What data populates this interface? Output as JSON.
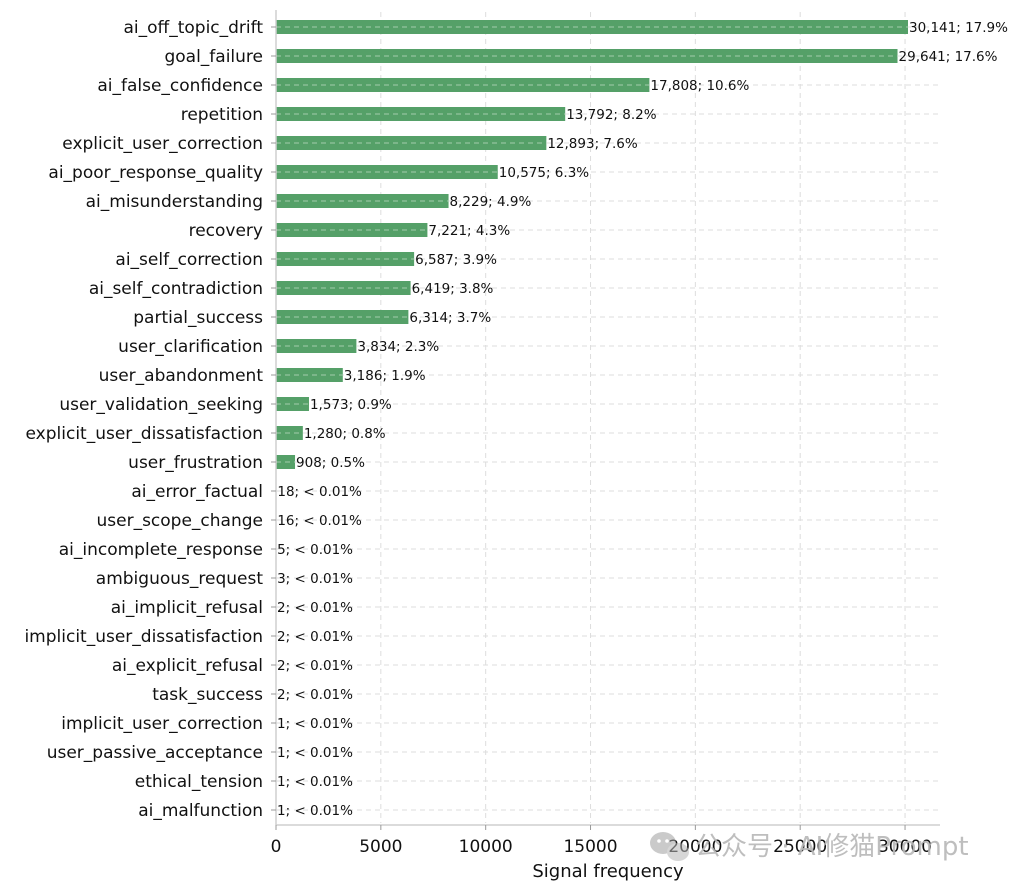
{
  "chart_data": {
    "type": "bar",
    "orientation": "horizontal",
    "title": "",
    "xlabel": "Signal frequency",
    "ylabel": "",
    "xlim": [
      0,
      32000
    ],
    "xticks": [
      0,
      5000,
      10000,
      15000,
      20000,
      25000,
      30000
    ],
    "xtick_labels": [
      "0",
      "5000",
      "10000",
      "15000",
      "20000",
      "25000",
      "30000"
    ],
    "grid": true,
    "bar_color": "#55a068",
    "categories": [
      "ai_off_topic_drift",
      "goal_failure",
      "ai_false_confidence",
      "repetition",
      "explicit_user_correction",
      "ai_poor_response_quality",
      "ai_misunderstanding",
      "recovery",
      "ai_self_correction",
      "ai_self_contradiction",
      "partial_success",
      "user_clarification",
      "user_abandonment",
      "user_validation_seeking",
      "explicit_user_dissatisfaction",
      "user_frustration",
      "ai_error_factual",
      "user_scope_change",
      "ai_incomplete_response",
      "ambiguous_request",
      "ai_implicit_refusal",
      "implicit_user_dissatisfaction",
      "ai_explicit_refusal",
      "task_success",
      "implicit_user_correction",
      "user_passive_acceptance",
      "ethical_tension",
      "ai_malfunction"
    ],
    "values": [
      30141,
      29641,
      17808,
      13792,
      12893,
      10575,
      8229,
      7221,
      6587,
      6419,
      6314,
      3834,
      3186,
      1573,
      1280,
      908,
      18,
      16,
      5,
      3,
      2,
      2,
      2,
      2,
      1,
      1,
      1,
      1
    ],
    "data_labels": [
      "30,141; 17.9%",
      "29,641; 17.6%",
      "17,808; 10.6%",
      "13,792; 8.2%",
      "12,893; 7.6%",
      "10,575; 6.3%",
      "8,229; 4.9%",
      "7,221; 4.3%",
      "6,587; 3.9%",
      "6,419; 3.8%",
      "6,314; 3.7%",
      "3,834; 2.3%",
      "3,186; 1.9%",
      "1,573; 0.9%",
      "1,280; 0.8%",
      "908; 0.5%",
      "18; < 0.01%",
      "16; < 0.01%",
      "5; < 0.01%",
      "3; < 0.01%",
      "2; < 0.01%",
      "2; < 0.01%",
      "2; < 0.01%",
      "2; < 0.01%",
      "1; < 0.01%",
      "1; < 0.01%",
      "1; < 0.01%",
      "1; < 0.01%"
    ]
  },
  "watermark": {
    "text": "公众号 · AI修猫Prompt",
    "icon": "wechat-icon"
  }
}
